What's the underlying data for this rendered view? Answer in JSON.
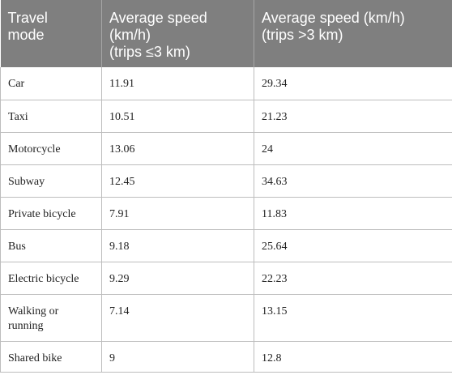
{
  "table": {
    "headers": [
      "Travel\nmode",
      "Average speed\n(km/h)\n(trips ≤3 km)",
      "Average speed (km/h)\n(trips >3 km)"
    ],
    "rows": [
      [
        "Car",
        "11.91",
        "29.34"
      ],
      [
        "Taxi",
        "10.51",
        "21.23"
      ],
      [
        "Motorcycle",
        "13.06",
        "24"
      ],
      [
        "Subway",
        "12.45",
        "34.63"
      ],
      [
        "Private bicycle",
        "7.91",
        "11.83"
      ],
      [
        "Bus",
        "9.18",
        "25.64"
      ],
      [
        "Electric bicycle",
        "9.29",
        "22.23"
      ],
      [
        "Walking or running",
        "7.14",
        "13.15"
      ],
      [
        "Shared bike",
        "9",
        "12.8"
      ]
    ]
  },
  "colors": {
    "header_background": "#7f7f7f",
    "header_text": "#ffffff",
    "grid_line": "#bdbdbd"
  }
}
